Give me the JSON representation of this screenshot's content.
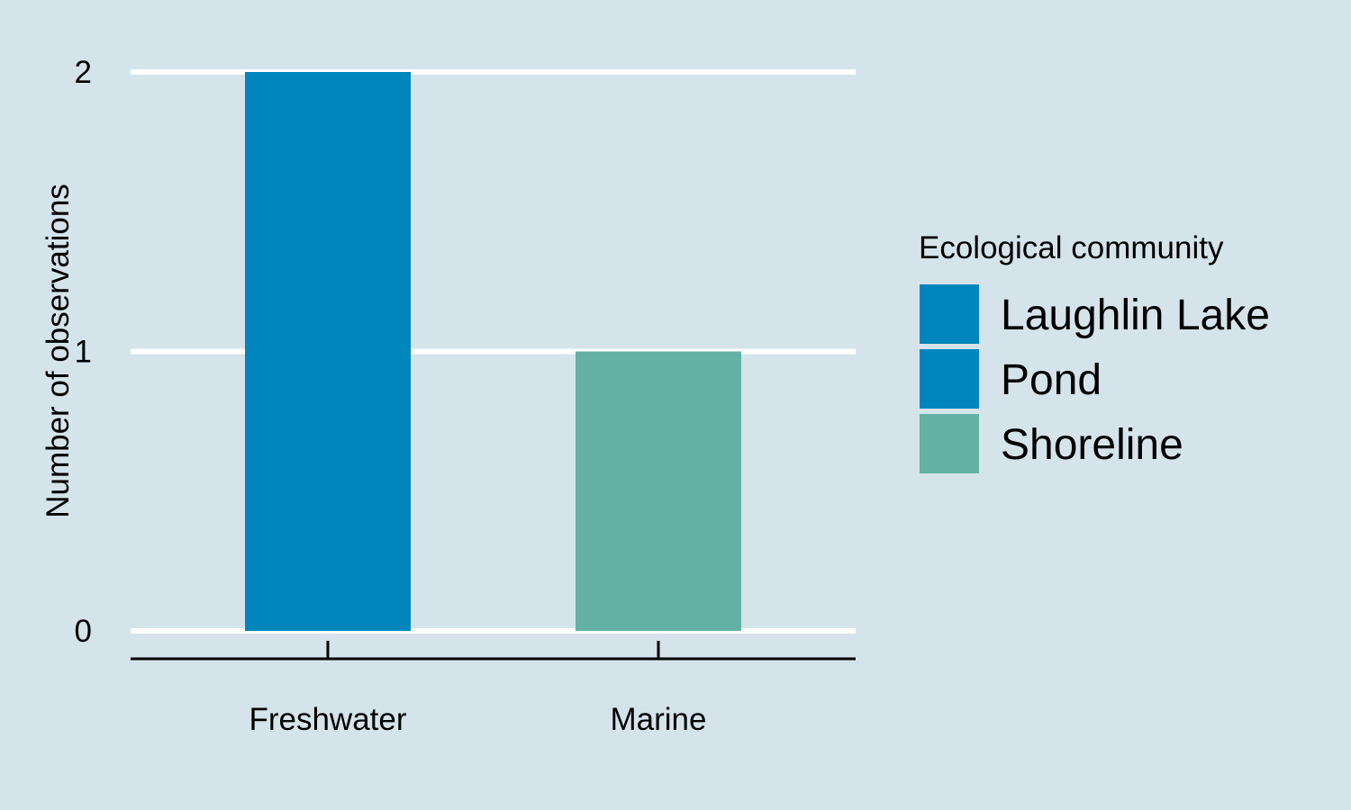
{
  "chart_data": {
    "type": "bar",
    "stacked": true,
    "categories": [
      "Freshwater",
      "Marine"
    ],
    "series": [
      {
        "name": "Laughlin Lake",
        "color": "#0085bd",
        "values": [
          1,
          0
        ]
      },
      {
        "name": "Pond",
        "color": "#0085bd",
        "values": [
          1,
          0
        ]
      },
      {
        "name": "Shoreline",
        "color": "#63b0a5",
        "values": [
          0,
          1
        ]
      }
    ],
    "title": "",
    "xlabel": "",
    "ylabel": "Number of observations",
    "ylim": [
      0,
      2
    ],
    "yticks": [
      0,
      1,
      2
    ],
    "grid": "horizontal",
    "legend": {
      "title": "Ecological community",
      "placement": "right"
    },
    "colors": {
      "background": "#d5e4eb",
      "gridline": "#ffffff",
      "axis": "#000000"
    }
  }
}
